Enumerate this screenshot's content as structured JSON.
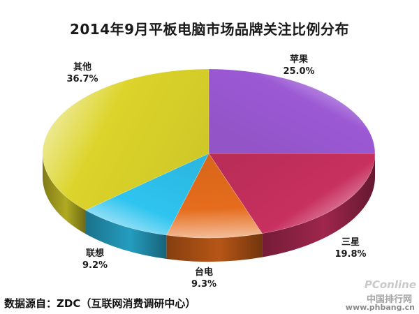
{
  "chart_data": {
    "type": "pie",
    "title": "2014年9月平板电脑市场品牌关注比例分布",
    "categories": [
      "苹果",
      "三星",
      "台电",
      "联想",
      "其他"
    ],
    "values": [
      25.0,
      19.8,
      9.3,
      9.2,
      36.7
    ],
    "labels": [
      "25.0%",
      "19.8%",
      "9.3%",
      "9.2%",
      "36.7%"
    ],
    "colors": [
      "#9b59d4",
      "#c7305f",
      "#e56c1c",
      "#2ec4ef",
      "#dcd42a"
    ],
    "legend": "none"
  },
  "footer": {
    "source": "数据源自：ZDC（互联网消费调研中心）"
  },
  "watermark": {
    "logo": "PConline",
    "site": "中国排行网",
    "url": "www.phbang.cn"
  }
}
